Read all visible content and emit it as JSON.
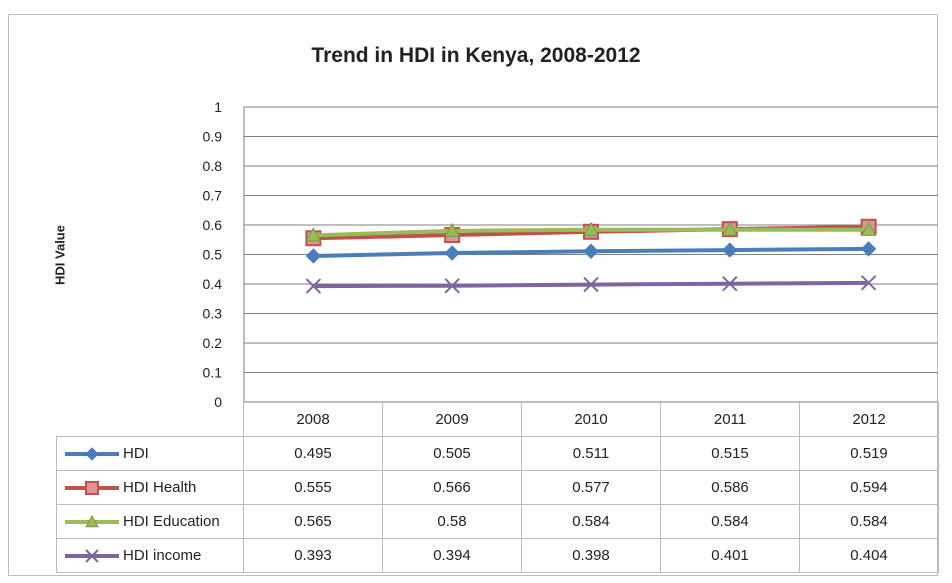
{
  "chart_data": {
    "type": "line",
    "title": "Trend in HDI in Kenya, 2008-2012",
    "xlabel": "",
    "ylabel": "HDI Value",
    "categories": [
      "2008",
      "2009",
      "2010",
      "2011",
      "2012"
    ],
    "ylim": [
      0,
      1
    ],
    "yticks": [
      "0",
      "0.1",
      "0.2",
      "0.3",
      "0.4",
      "0.5",
      "0.6",
      "0.7",
      "0.8",
      "0.9",
      "1"
    ],
    "grid": true,
    "legend": "data-table",
    "series": [
      {
        "name": "HDI",
        "color": "#4a7ebb",
        "marker": "diamond",
        "values": [
          0.495,
          0.505,
          0.511,
          0.515,
          0.519
        ],
        "labels": [
          "0.495",
          "0.505",
          "0.511",
          "0.515",
          "0.519"
        ]
      },
      {
        "name": "HDI Health",
        "color": "#c0504d",
        "marker": "square",
        "values": [
          0.555,
          0.566,
          0.577,
          0.586,
          0.594
        ],
        "labels": [
          "0.555",
          "0.566",
          "0.577",
          "0.586",
          "0.594"
        ]
      },
      {
        "name": "HDI Education",
        "color": "#9bbb59",
        "marker": "triangle",
        "values": [
          0.565,
          0.58,
          0.584,
          0.584,
          0.584
        ],
        "labels": [
          "0.565",
          "0.58",
          "0.584",
          "0.584",
          "0.584"
        ]
      },
      {
        "name": "HDI income",
        "color": "#8064a2",
        "marker": "x",
        "values": [
          0.393,
          0.394,
          0.398,
          0.401,
          0.404
        ],
        "labels": [
          "0.393",
          "0.394",
          "0.398",
          "0.401",
          "0.404"
        ]
      }
    ]
  }
}
